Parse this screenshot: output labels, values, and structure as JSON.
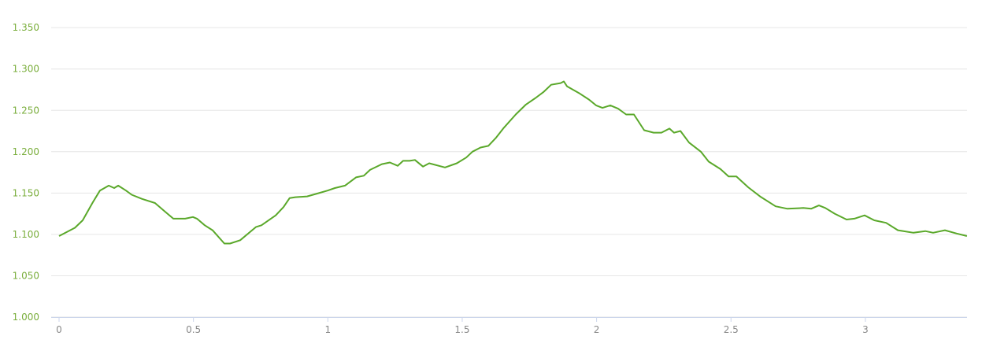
{
  "chart_data": {
    "type": "line",
    "title": "",
    "xlabel": "",
    "ylabel": "",
    "xlim": [
      0,
      3.38
    ],
    "ylim": [
      1.0,
      1.35
    ],
    "grid": true,
    "legend": "none",
    "colors": {
      "line": "#5aa82a",
      "ytick": "#7aae3c",
      "xtick": "#888888",
      "grid": "#e6e6e6"
    },
    "y_ticks": [
      {
        "value": 1.35,
        "label": "1.350"
      },
      {
        "value": 1.3,
        "label": "1.300"
      },
      {
        "value": 1.25,
        "label": "1.250"
      },
      {
        "value": 1.2,
        "label": "1.200"
      },
      {
        "value": 1.15,
        "label": "1.150"
      },
      {
        "value": 1.1,
        "label": "1.100"
      },
      {
        "value": 1.05,
        "label": "1.050"
      },
      {
        "value": 1.0,
        "label": "1.000"
      }
    ],
    "x_ticks": [
      {
        "value": 0,
        "label": "0"
      },
      {
        "value": 0.5,
        "label": "0.5"
      },
      {
        "value": 1,
        "label": "1"
      },
      {
        "value": 1.5,
        "label": "1.5"
      },
      {
        "value": 2,
        "label": "2"
      },
      {
        "value": 2.5,
        "label": "2.5"
      },
      {
        "value": 3,
        "label": "3"
      }
    ],
    "series": [
      {
        "x": [
          0,
          0.059,
          0.088,
          0.126,
          0.152,
          0.185,
          0.205,
          0.22,
          0.249,
          0.27,
          0.308,
          0.357,
          0.396,
          0.425,
          0.469,
          0.498,
          0.513,
          0.542,
          0.571,
          0.615,
          0.636,
          0.674,
          0.733,
          0.753,
          0.806,
          0.835,
          0.858,
          0.879,
          0.923,
          0.967,
          0.999,
          1.026,
          1.064,
          1.105,
          1.134,
          1.157,
          1.201,
          1.231,
          1.26,
          1.28,
          1.304,
          1.324,
          1.354,
          1.377,
          1.436,
          1.48,
          1.515,
          1.538,
          1.568,
          1.597,
          1.626,
          1.655,
          1.699,
          1.737,
          1.773,
          1.802,
          1.831,
          1.866,
          1.878,
          1.89,
          1.934,
          1.972,
          1.998,
          2.022,
          2.051,
          2.08,
          2.11,
          2.139,
          2.177,
          2.212,
          2.241,
          2.271,
          2.288,
          2.312,
          2.344,
          2.388,
          2.417,
          2.461,
          2.491,
          2.52,
          2.564,
          2.608,
          2.666,
          2.71,
          2.769,
          2.798,
          2.827,
          2.851,
          2.886,
          2.93,
          2.959,
          2.997,
          3.033,
          3.077,
          3.121,
          3.179,
          3.223,
          3.252,
          3.296,
          3.34,
          3.378
        ],
        "y": [
          1.098,
          1.108,
          1.117,
          1.139,
          1.153,
          1.159,
          1.156,
          1.159,
          1.153,
          1.148,
          1.143,
          1.138,
          1.127,
          1.119,
          1.119,
          1.121,
          1.119,
          1.111,
          1.105,
          1.089,
          1.089,
          1.093,
          1.109,
          1.111,
          1.123,
          1.133,
          1.144,
          1.145,
          1.146,
          1.15,
          1.153,
          1.156,
          1.159,
          1.169,
          1.171,
          1.178,
          1.185,
          1.187,
          1.183,
          1.189,
          1.189,
          1.19,
          1.182,
          1.186,
          1.181,
          1.186,
          1.193,
          1.2,
          1.205,
          1.207,
          1.217,
          1.229,
          1.245,
          1.257,
          1.265,
          1.272,
          1.281,
          1.283,
          1.285,
          1.279,
          1.271,
          1.263,
          1.256,
          1.253,
          1.256,
          1.252,
          1.245,
          1.245,
          1.226,
          1.223,
          1.223,
          1.228,
          1.223,
          1.225,
          1.211,
          1.2,
          1.188,
          1.179,
          1.17,
          1.17,
          1.157,
          1.146,
          1.134,
          1.131,
          1.132,
          1.131,
          1.135,
          1.132,
          1.125,
          1.118,
          1.119,
          1.123,
          1.117,
          1.114,
          1.105,
          1.102,
          1.104,
          1.102,
          1.105,
          1.101,
          1.098
        ]
      }
    ]
  }
}
